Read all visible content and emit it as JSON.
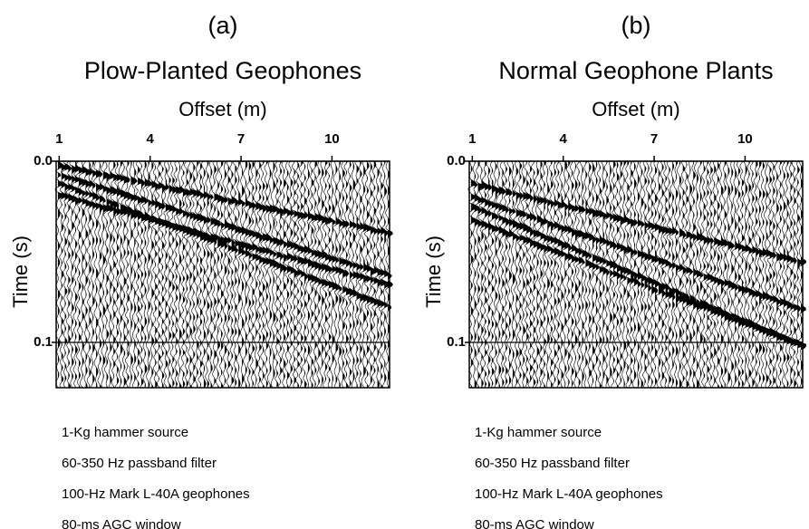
{
  "figure": {
    "panels": [
      {
        "label": "(a)",
        "title": "Plow-Planted Geophones",
        "x_label": "Offset (m)",
        "xlim": [
          0.9,
          11.9
        ],
        "xticks": [
          1,
          4,
          7,
          10
        ],
        "y_label": "Time (s)",
        "ylim": [
          0,
          0.125
        ],
        "yticks": [
          {
            "value": 0,
            "label": "0.0"
          },
          0.1
        ],
        "notes": [
          "1-Kg hammer source",
          "60-350 Hz passband filter",
          "100-Hz Mark L-40A geophones",
          "80-ms AGC window"
        ]
      },
      {
        "label": "(b)",
        "title": "Normal Geophone Plants",
        "x_label": "Offset (m)",
        "xlim": [
          0.9,
          11.9
        ],
        "xticks": [
          1,
          4,
          7,
          10
        ],
        "y_label": "Time (s)",
        "ylim": [
          0,
          0.125
        ],
        "yticks": [
          {
            "value": 0,
            "label": "0.0"
          },
          0.1
        ],
        "notes": [
          "1-Kg hammer source",
          "60-350 Hz passband filter",
          "100-Hz Mark L-40A geophones",
          "80-ms AGC window"
        ]
      }
    ]
  }
}
